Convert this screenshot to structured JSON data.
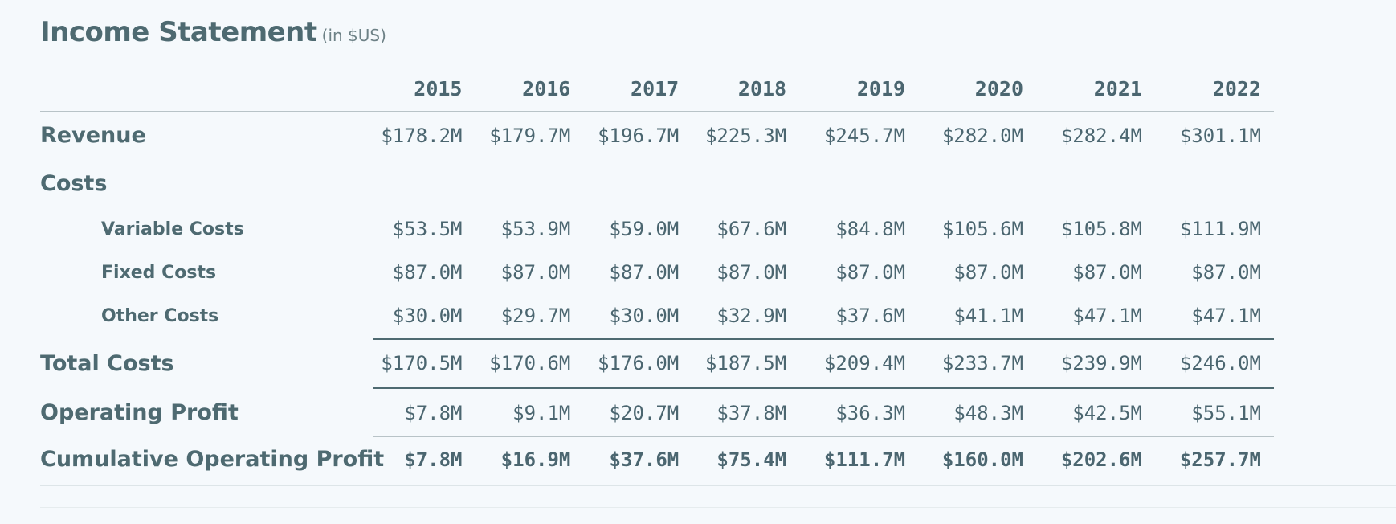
{
  "header": {
    "title": "Income Statement",
    "subtitle": "(in $US)"
  },
  "years": [
    "2015",
    "2016",
    "2017",
    "2018",
    "2019",
    "2020",
    "2021",
    "2022"
  ],
  "rows": {
    "revenue": {
      "label": "Revenue",
      "values": [
        "$178.2M",
        "$179.7M",
        "$196.7M",
        "$225.3M",
        "$245.7M",
        "$282.0M",
        "$282.4M",
        "$301.1M"
      ]
    },
    "costs": {
      "label": "Costs"
    },
    "variable_costs": {
      "label": "Variable Costs",
      "values": [
        "$53.5M",
        "$53.9M",
        "$59.0M",
        "$67.6M",
        "$84.8M",
        "$105.6M",
        "$105.8M",
        "$111.9M"
      ]
    },
    "fixed_costs": {
      "label": "Fixed Costs",
      "values": [
        "$87.0M",
        "$87.0M",
        "$87.0M",
        "$87.0M",
        "$87.0M",
        "$87.0M",
        "$87.0M",
        "$87.0M"
      ]
    },
    "other_costs": {
      "label": "Other Costs",
      "values": [
        "$30.0M",
        "$29.7M",
        "$30.0M",
        "$32.9M",
        "$37.6M",
        "$41.1M",
        "$47.1M",
        "$47.1M"
      ]
    },
    "total_costs": {
      "label": "Total Costs",
      "values": [
        "$170.5M",
        "$170.6M",
        "$176.0M",
        "$187.5M",
        "$209.4M",
        "$233.7M",
        "$239.9M",
        "$246.0M"
      ]
    },
    "operating_profit": {
      "label": "Operating Profit",
      "values": [
        "$7.8M",
        "$9.1M",
        "$20.7M",
        "$37.8M",
        "$36.3M",
        "$48.3M",
        "$42.5M",
        "$55.1M"
      ]
    },
    "cumulative_operating_profit": {
      "label": "Cumulative Operating Profit",
      "values": [
        "$7.8M",
        "$16.9M",
        "$37.6M",
        "$75.4M",
        "$111.7M",
        "$160.0M",
        "$202.6M",
        "$257.7M"
      ]
    }
  },
  "colors": {
    "background": "#f5f9fc",
    "text": "#4e6a71",
    "rule": "#4e6a71",
    "light_rule": "#b8c3c7"
  }
}
